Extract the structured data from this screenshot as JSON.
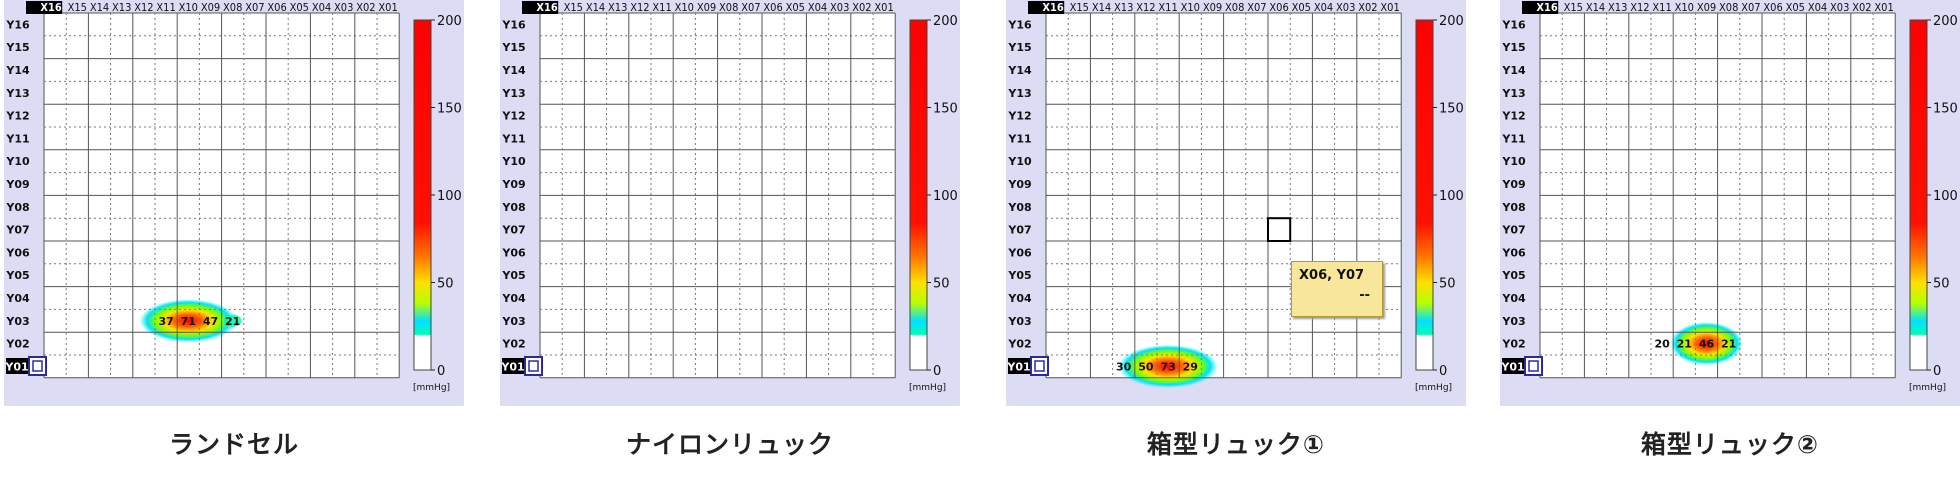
{
  "chart_data": [
    {
      "type": "heatmap",
      "title": "ランドセル",
      "x_labels": [
        "X16",
        "X15",
        "X14",
        "X13",
        "X12",
        "X11",
        "X10",
        "X09",
        "X08",
        "X07",
        "X06",
        "X05",
        "X04",
        "X03",
        "X02",
        "X01"
      ],
      "y_labels": [
        "Y16",
        "Y15",
        "Y14",
        "Y13",
        "Y12",
        "Y11",
        "Y10",
        "Y09",
        "Y08",
        "Y07",
        "Y06",
        "Y05",
        "Y04",
        "Y03",
        "Y02",
        "Y01"
      ],
      "colorbar": {
        "min": 0,
        "max": 200,
        "ticks": [
          "200",
          "150",
          "100",
          "50",
          "0"
        ],
        "unit": "[mmHg]"
      },
      "cells": [
        {
          "x": "X11",
          "y": "Y03",
          "value": 37
        },
        {
          "x": "X10",
          "y": "Y03",
          "value": 71
        },
        {
          "x": "X09",
          "y": "Y03",
          "value": 47
        },
        {
          "x": "X08",
          "y": "Y03",
          "value": 21
        }
      ]
    },
    {
      "type": "heatmap",
      "title": "ナイロンリュック",
      "x_labels": [
        "X16",
        "X15",
        "X14",
        "X13",
        "X12",
        "X11",
        "X10",
        "X09",
        "X08",
        "X07",
        "X06",
        "X05",
        "X04",
        "X03",
        "X02",
        "X01"
      ],
      "y_labels": [
        "Y16",
        "Y15",
        "Y14",
        "Y13",
        "Y12",
        "Y11",
        "Y10",
        "Y09",
        "Y08",
        "Y07",
        "Y06",
        "Y05",
        "Y04",
        "Y03",
        "Y02",
        "Y01"
      ],
      "colorbar": {
        "min": 0,
        "max": 200,
        "ticks": [
          "200",
          "150",
          "100",
          "50",
          "0"
        ],
        "unit": "[mmHg]"
      },
      "cells": []
    },
    {
      "type": "heatmap",
      "title": "箱型リュック①",
      "x_labels": [
        "X16",
        "X15",
        "X14",
        "X13",
        "X12",
        "X11",
        "X10",
        "X09",
        "X08",
        "X07",
        "X06",
        "X05",
        "X04",
        "X03",
        "X02",
        "X01"
      ],
      "y_labels": [
        "Y16",
        "Y15",
        "Y14",
        "Y13",
        "Y12",
        "Y11",
        "Y10",
        "Y09",
        "Y08",
        "Y07",
        "Y06",
        "Y05",
        "Y04",
        "Y03",
        "Y02",
        "Y01"
      ],
      "colorbar": {
        "min": 0,
        "max": 200,
        "ticks": [
          "200",
          "150",
          "100",
          "50",
          "0"
        ],
        "unit": "[mmHg]"
      },
      "cells": [
        {
          "x": "X13",
          "y": "Y01",
          "value": 30
        },
        {
          "x": "X12",
          "y": "Y01",
          "value": 50
        },
        {
          "x": "X11",
          "y": "Y01",
          "value": 73
        },
        {
          "x": "X10",
          "y": "Y01",
          "value": 29
        }
      ],
      "tooltip": {
        "cell": "X06, Y07",
        "value": "--"
      }
    },
    {
      "type": "heatmap",
      "title": "箱型リュック②",
      "x_labels": [
        "X16",
        "X15",
        "X14",
        "X13",
        "X12",
        "X11",
        "X10",
        "X09",
        "X08",
        "X07",
        "X06",
        "X05",
        "X04",
        "X03",
        "X02",
        "X01"
      ],
      "y_labels": [
        "Y16",
        "Y15",
        "Y14",
        "Y13",
        "Y12",
        "Y11",
        "Y10",
        "Y09",
        "Y08",
        "Y07",
        "Y06",
        "Y05",
        "Y04",
        "Y03",
        "Y02",
        "Y01"
      ],
      "colorbar": {
        "min": 0,
        "max": 200,
        "ticks": [
          "200",
          "150",
          "100",
          "50",
          "0"
        ],
        "unit": "[mmHg]"
      },
      "cells": [
        {
          "x": "X11",
          "y": "Y02",
          "value": 20
        },
        {
          "x": "X10",
          "y": "Y02",
          "value": 21
        },
        {
          "x": "X09",
          "y": "Y02",
          "value": 46
        },
        {
          "x": "X08",
          "y": "Y02",
          "value": 21
        }
      ]
    }
  ]
}
